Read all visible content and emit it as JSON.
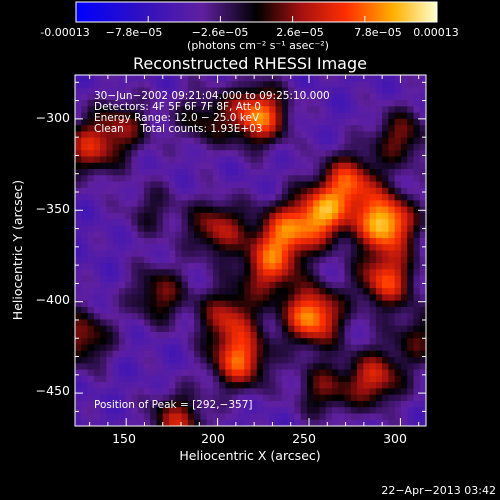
{
  "colorbar": {
    "tick_labels": [
      "-0.00013",
      "−7.8e−05",
      "−2.6e−05",
      "2.6e−05",
      "7.8e−05",
      "0.00013"
    ],
    "unit_label": "(photons cm⁻² s⁻¹ asec⁻²)",
    "range": [
      -0.00013,
      0.00013
    ]
  },
  "chart_data": {
    "type": "heatmap",
    "title": "Reconstructed RHESSI Image",
    "xlabel": "Heliocentric X (arcsec)",
    "ylabel": "Heliocentric Y (arcsec)",
    "xlim": [
      122,
      314
    ],
    "ylim": [
      -468,
      -276
    ],
    "x_ticks": [
      "150",
      "200",
      "250",
      "300"
    ],
    "y_ticks": [
      "−300",
      "−350",
      "−400",
      "−450"
    ],
    "x_tick_values": [
      150,
      200,
      250,
      300
    ],
    "y_tick_values": [
      -300,
      -350,
      -400,
      -450
    ],
    "annotations": [
      "30−Jun−2002 09:21:04.000 to 09:25:10.000",
      "Detectors: 4F 5F 6F 7F 8F, Att 0",
      "Energy Range: 12.0 − 25.0 keV",
      "Clean     Total counts: 1.93E+03"
    ],
    "peak_label": "Position of Peak = [292,−357]",
    "peak_position": [
      292,
      -357
    ],
    "sources": [
      {
        "x": 292,
        "y": -357,
        "intensity": 1.0
      },
      {
        "x": 222,
        "y": -298,
        "intensity": 0.85
      },
      {
        "x": 252,
        "y": -408,
        "intensity": 0.9
      },
      {
        "x": 256,
        "y": -353,
        "intensity": 0.8
      },
      {
        "x": 272,
        "y": -335,
        "intensity": 0.7
      },
      {
        "x": 292,
        "y": -388,
        "intensity": 0.7
      },
      {
        "x": 236,
        "y": -363,
        "intensity": 0.65
      },
      {
        "x": 212,
        "y": -432,
        "intensity": 0.75
      },
      {
        "x": 228,
        "y": -382,
        "intensity": 0.6
      },
      {
        "x": 200,
        "y": -360,
        "intensity": 0.55
      },
      {
        "x": 130,
        "y": -316,
        "intensity": 0.55
      },
      {
        "x": 148,
        "y": -304,
        "intensity": 0.4
      },
      {
        "x": 126,
        "y": -420,
        "intensity": 0.5
      },
      {
        "x": 168,
        "y": -396,
        "intensity": 0.45
      },
      {
        "x": 178,
        "y": -466,
        "intensity": 0.55
      },
      {
        "x": 286,
        "y": -442,
        "intensity": 0.6
      },
      {
        "x": 300,
        "y": -310,
        "intensity": 0.45
      },
      {
        "x": 206,
        "y": -408,
        "intensity": 0.55
      },
      {
        "x": 164,
        "y": -350,
        "intensity": 0.25
      },
      {
        "x": 310,
        "y": -420,
        "intensity": 0.35
      },
      {
        "x": 192,
        "y": -300,
        "intensity": 0.35
      },
      {
        "x": 258,
        "y": -448,
        "intensity": 0.4
      }
    ]
  },
  "footer": {
    "date": "22−Apr−2013 03:42"
  },
  "colors": {
    "background": "#000000",
    "text": "#ffffff"
  }
}
